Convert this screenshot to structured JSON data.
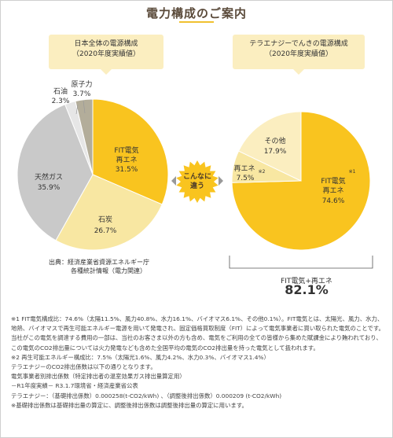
{
  "page": {
    "title": "電力構成のご案内"
  },
  "chart_data": [
    {
      "type": "pie",
      "title": "日本全体の電源構成",
      "subtitle": "（2020年度実績値）",
      "slices": [
        {
          "name": "FIT電気",
          "name2": "再エネ",
          "value": 31.5,
          "label": "31.5%",
          "color": "#f9c41f"
        },
        {
          "name": "石炭",
          "value": 26.7,
          "label": "26.7%",
          "color": "#f8e7a2"
        },
        {
          "name": "天然ガス",
          "value": 35.9,
          "label": "35.9%",
          "color": "#c9c9c9"
        },
        {
          "name": "石油",
          "value": 2.3,
          "label": "2.3%",
          "color": "#e6e6e6"
        },
        {
          "name": "原子力",
          "value": 3.7,
          "label": "3.7%",
          "color": "#b3ad9a"
        }
      ],
      "source_label": "出典：経済産業省資源エネルギー庁",
      "source_detail": "各種統計情報（電力関連）"
    },
    {
      "type": "pie",
      "title": "テラエナジーでんきの電源構成",
      "subtitle": "（2020年度実績値）",
      "slices": [
        {
          "name": "FIT電気",
          "name2": "再エネ",
          "value": 74.6,
          "label": "74.6%",
          "note": "※1",
          "color": "#f9c41f"
        },
        {
          "name": "再エネ",
          "value": 7.5,
          "label": "7.5%",
          "note": "※2",
          "color": "#f8e7a2"
        },
        {
          "name": "その他",
          "value": 17.9,
          "label": "17.9%",
          "color": "#fbeec0"
        }
      ],
      "total_label": "FIT電気+再エネ",
      "total_value": "82.1%"
    }
  ],
  "badge": {
    "line1": "こんなに",
    "line2": "違う",
    "color": "#f9c41f"
  },
  "notes": [
    "※1 FIT電気構成比：74.6%（太陽11.5%、風力40.8%、水力16.1%、バイオマス6.1%、その他0.1%）。FIT電気とは、太陽光、風力、水力、地熱、バイオマスで再生可能エネルギー電源を用いて発電され、固定価格買取制度（FIT）によって電気事業者に買い取られた電気のことです。当社がこの電気を調達する費用の一部は、当社のお客さま以外の方も含め、電気をご利用の全ての皆様から集めた賦課金により賄われており、この電気のCO2排出量については火力発電なども含めた全国平均の電気のCO2排出量を持った電気として扱われます。",
    "※2 再生可能エネルギー構成比：7.5%（太陽光1.6%、風力4.2%、水力0.3%、バイオマス1.4%）",
    "テラエナジーのCO2排出係数は以下の通りとなります。",
    "電気事業者別排出係数（特定排出者の温室効果ガス排出量算定用）",
    "－R1年度実績－ R3.1.7環境省・経済産業省公表",
    "テラエナジー：（基礎排出係数）0.000258(t-CO2/kWh) 、（調整後排出係数）0.000209 (t-CO2/kWh)",
    "※基礎排出係数は基礎排出量の算定に、調整後排出係数は調整後排出量の算定に用います。"
  ]
}
